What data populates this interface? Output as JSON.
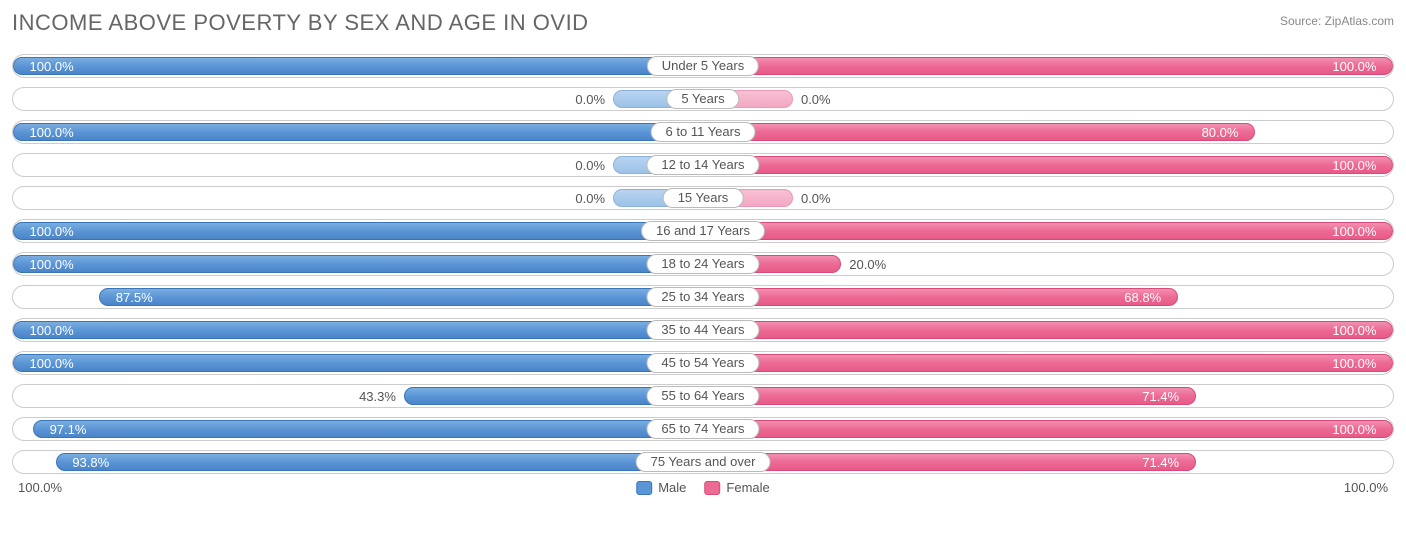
{
  "title": "INCOME ABOVE POVERTY BY SEX AND AGE IN OVID",
  "source": "Source: ZipAtlas.com",
  "axis": {
    "left": "100.0%",
    "right": "100.0%"
  },
  "legend": {
    "male": "Male",
    "female": "Female"
  },
  "colors": {
    "male_bar": "#5b95d6",
    "female_bar": "#ec6a94",
    "male_placeholder": "#9cc2e8",
    "female_placeholder": "#f4a8c4",
    "row_border": "#cccccc",
    "text": "#555555",
    "title_text": "#666666",
    "background": "#ffffff"
  },
  "chart": {
    "type": "diverging-bar",
    "value_unit": "percent",
    "max": 100,
    "placeholder_width_pct": 13,
    "rows": [
      {
        "category": "Under 5 Years",
        "male": 100.0,
        "female": 100.0,
        "male_label": "100.0%",
        "female_label": "100.0%"
      },
      {
        "category": "5 Years",
        "male": 0.0,
        "female": 0.0,
        "male_label": "0.0%",
        "female_label": "0.0%"
      },
      {
        "category": "6 to 11 Years",
        "male": 100.0,
        "female": 80.0,
        "male_label": "100.0%",
        "female_label": "80.0%"
      },
      {
        "category": "12 to 14 Years",
        "male": 0.0,
        "female": 100.0,
        "male_label": "0.0%",
        "female_label": "100.0%"
      },
      {
        "category": "15 Years",
        "male": 0.0,
        "female": 0.0,
        "male_label": "0.0%",
        "female_label": "0.0%"
      },
      {
        "category": "16 and 17 Years",
        "male": 100.0,
        "female": 100.0,
        "male_label": "100.0%",
        "female_label": "100.0%"
      },
      {
        "category": "18 to 24 Years",
        "male": 100.0,
        "female": 20.0,
        "male_label": "100.0%",
        "female_label": "20.0%"
      },
      {
        "category": "25 to 34 Years",
        "male": 87.5,
        "female": 68.8,
        "male_label": "87.5%",
        "female_label": "68.8%"
      },
      {
        "category": "35 to 44 Years",
        "male": 100.0,
        "female": 100.0,
        "male_label": "100.0%",
        "female_label": "100.0%"
      },
      {
        "category": "45 to 54 Years",
        "male": 100.0,
        "female": 100.0,
        "male_label": "100.0%",
        "female_label": "100.0%"
      },
      {
        "category": "55 to 64 Years",
        "male": 43.3,
        "female": 71.4,
        "male_label": "43.3%",
        "female_label": "71.4%"
      },
      {
        "category": "65 to 74 Years",
        "male": 97.1,
        "female": 100.0,
        "male_label": "97.1%",
        "female_label": "100.0%"
      },
      {
        "category": "75 Years and over",
        "male": 93.8,
        "female": 71.4,
        "male_label": "93.8%",
        "female_label": "71.4%"
      }
    ]
  }
}
